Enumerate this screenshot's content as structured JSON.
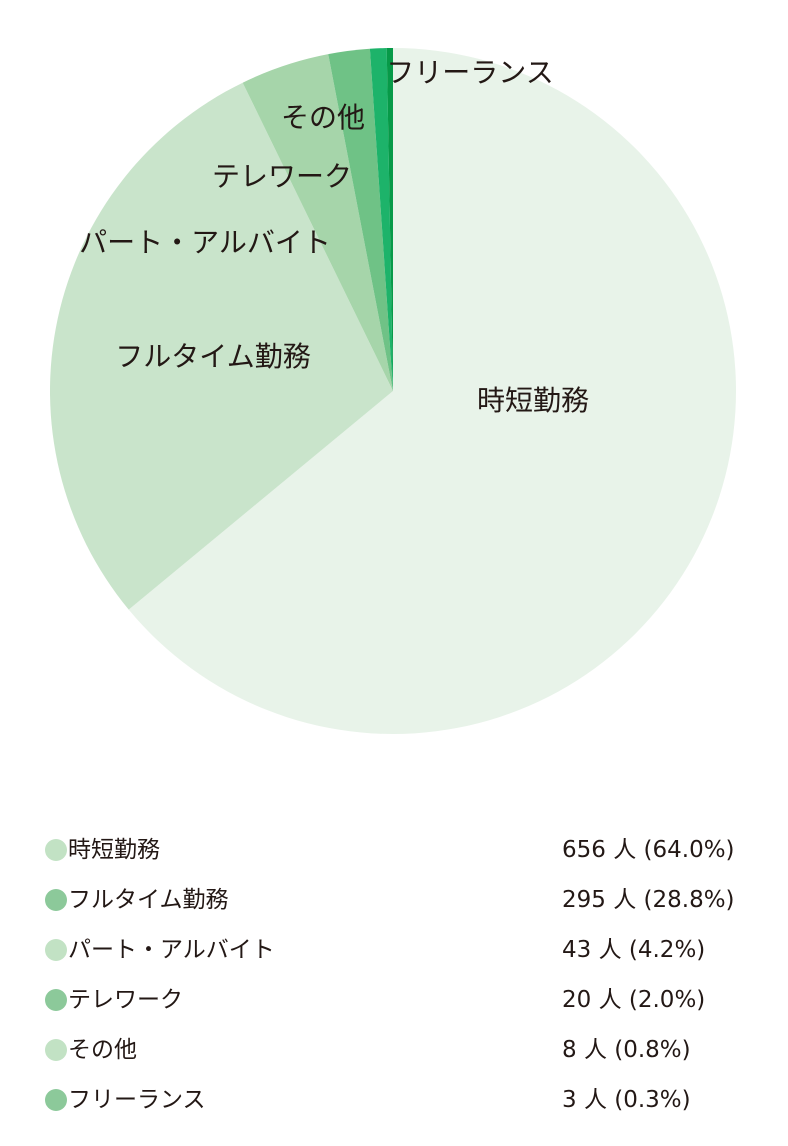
{
  "chart_data": {
    "type": "pie",
    "unit": "人",
    "categories": [
      "時短勤務",
      "フルタイム勤務",
      "パート・アルバイト",
      "テレワーク",
      "その他",
      "フリーランス"
    ],
    "values": [
      656,
      295,
      43,
      20,
      8,
      3
    ],
    "percents": [
      "64.0%",
      "28.8%",
      "4.2%",
      "2.0%",
      "0.8%",
      "0.3%"
    ],
    "slice_colors": [
      "#e8f3e9",
      "#c9e4cb",
      "#a6d5aa",
      "#6fc286",
      "#1db36a",
      "#079a48"
    ],
    "legend_dot_colors": [
      "#c2e2c4",
      "#8cc99a",
      "#c2e2c4",
      "#8cc99a",
      "#c2e2c4",
      "#8cc99a"
    ],
    "legend_values": [
      "656 人 (64.0%)",
      "295 人 (28.8%)",
      "43 人 (4.2%)",
      "20 人 (2.0%)",
      "8 人 (0.8%)",
      "3 人 (0.3%)"
    ],
    "legend_placement": "bottom",
    "start": "top",
    "direction": "clockwise"
  }
}
